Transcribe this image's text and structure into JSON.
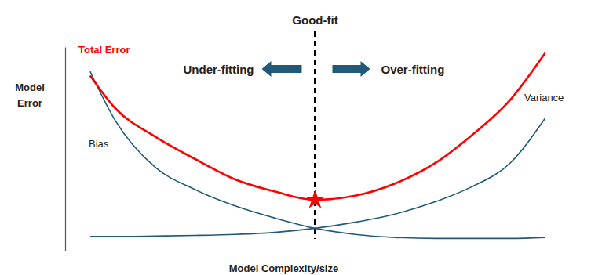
{
  "chart_data": {
    "type": "line",
    "xlabel": "Model Complexity/size",
    "ylabel": "Model Error",
    "x": [
      0.5,
      1.0,
      1.8,
      2.6,
      3.4,
      4.2,
      5.0,
      5.8,
      6.6,
      7.4,
      8.1,
      8.9,
      9.6
    ],
    "xlim": [
      0,
      10
    ],
    "ylim": [
      0,
      10
    ],
    "xticks": [],
    "yticks": [],
    "tick_labels": false,
    "grid": false,
    "series": [
      {
        "name": "Total Error",
        "color": "#ff0000",
        "values": [
          8.6,
          7.0,
          5.6,
          4.5,
          3.5,
          2.9,
          2.5,
          2.7,
          3.3,
          4.3,
          5.6,
          7.4,
          9.7
        ]
      },
      {
        "name": "Bias",
        "color": "#1f5a78",
        "values": [
          8.8,
          6.4,
          4.1,
          3.0,
          2.2,
          1.6,
          1.1,
          0.8,
          0.65,
          0.6,
          0.6,
          0.6,
          0.65
        ]
      },
      {
        "name": "Variance",
        "color": "#1f5a78",
        "values": [
          0.7,
          0.7,
          0.72,
          0.75,
          0.8,
          0.9,
          1.1,
          1.4,
          1.8,
          2.4,
          3.1,
          4.3,
          6.5
        ]
      }
    ],
    "annotations": [
      {
        "text": "Good-fit",
        "x": 5.0,
        "y": 2.5,
        "line_style": "dashed",
        "marker": "star",
        "color": "#ff0000"
      },
      {
        "text": "Under-fitting"
      },
      {
        "text": "Over-fitting"
      }
    ]
  }
}
